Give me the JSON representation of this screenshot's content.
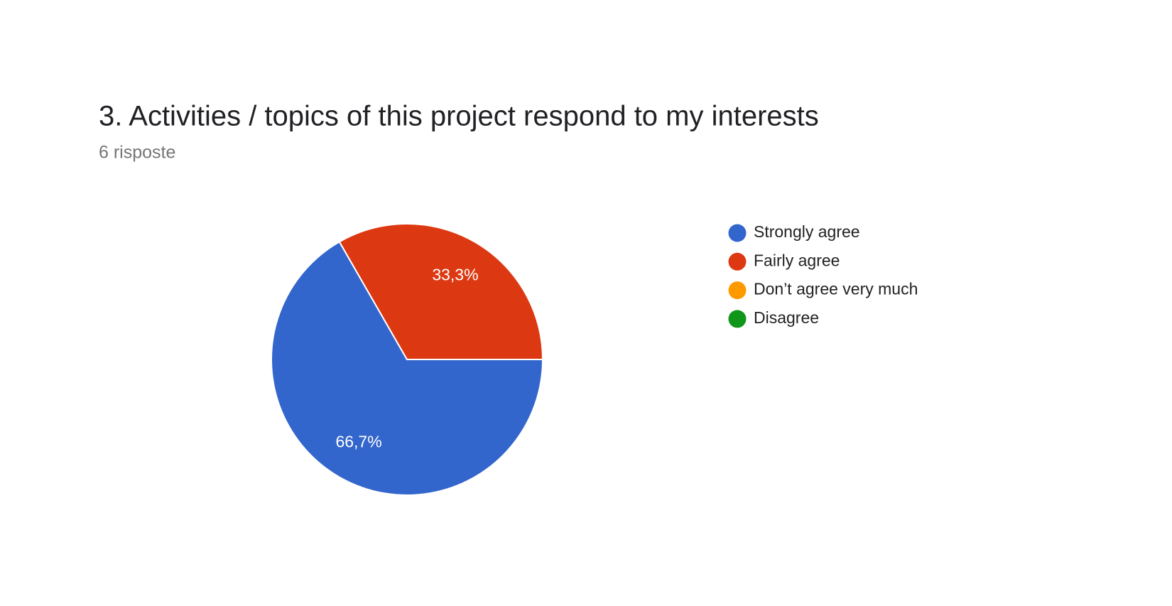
{
  "chart_data": {
    "type": "pie",
    "title": "3. Activities / topics of this project respond to my interests",
    "subtitle": "6 risposte",
    "categories": [
      "Strongly agree",
      "Fairly agree",
      "Don’t agree very much",
      "Disagree"
    ],
    "values": [
      66.7,
      33.3,
      0,
      0
    ],
    "value_labels": [
      "66,7%",
      "33,3%",
      null,
      null
    ],
    "colors": [
      "#3366cc",
      "#dc3912",
      "#ff9900",
      "#109618"
    ],
    "legend": "right"
  }
}
